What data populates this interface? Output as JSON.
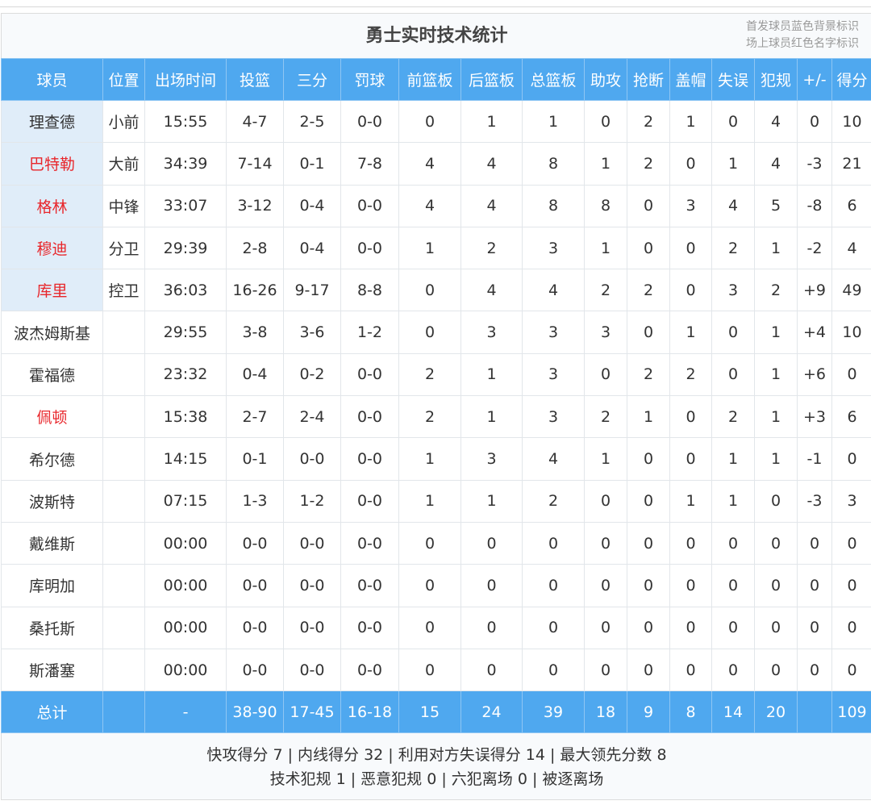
{
  "title": "勇士实时技术统计",
  "legend": [
    "首发球员蓝色背景标识",
    "场上球员红色名字标识"
  ],
  "colors": {
    "header_bg": "#4fa8ef",
    "starter_bg": "#e0edf9",
    "on_court_name": "#e8262b"
  },
  "columns": [
    "球员",
    "位置",
    "出场时间",
    "投篮",
    "三分",
    "罚球",
    "前篮板",
    "后篮板",
    "总篮板",
    "助攻",
    "抢断",
    "盖帽",
    "失误",
    "犯规",
    "+/-",
    "得分"
  ],
  "rows": [
    {
      "starter": true,
      "on_court": false,
      "cells": [
        "理查德",
        "小前",
        "15:55",
        "4-7",
        "2-5",
        "0-0",
        "0",
        "1",
        "1",
        "0",
        "2",
        "1",
        "0",
        "4",
        "0",
        "10"
      ]
    },
    {
      "starter": true,
      "on_court": true,
      "cells": [
        "巴特勒",
        "大前",
        "34:39",
        "7-14",
        "0-1",
        "7-8",
        "4",
        "4",
        "8",
        "1",
        "2",
        "0",
        "1",
        "4",
        "-3",
        "21"
      ]
    },
    {
      "starter": true,
      "on_court": true,
      "cells": [
        "格林",
        "中锋",
        "33:07",
        "3-12",
        "0-4",
        "0-0",
        "4",
        "4",
        "8",
        "8",
        "0",
        "3",
        "4",
        "5",
        "-8",
        "6"
      ]
    },
    {
      "starter": true,
      "on_court": true,
      "cells": [
        "穆迪",
        "分卫",
        "29:39",
        "2-8",
        "0-4",
        "0-0",
        "1",
        "2",
        "3",
        "1",
        "0",
        "0",
        "2",
        "1",
        "-2",
        "4"
      ]
    },
    {
      "starter": true,
      "on_court": true,
      "cells": [
        "库里",
        "控卫",
        "36:03",
        "16-26",
        "9-17",
        "8-8",
        "0",
        "4",
        "4",
        "2",
        "2",
        "0",
        "3",
        "2",
        "+9",
        "49"
      ]
    },
    {
      "starter": false,
      "on_court": false,
      "cells": [
        "波杰姆斯基",
        "",
        "29:55",
        "3-8",
        "3-6",
        "1-2",
        "0",
        "3",
        "3",
        "3",
        "0",
        "1",
        "0",
        "1",
        "+4",
        "10"
      ]
    },
    {
      "starter": false,
      "on_court": false,
      "cells": [
        "霍福德",
        "",
        "23:32",
        "0-4",
        "0-2",
        "0-0",
        "2",
        "1",
        "3",
        "0",
        "2",
        "2",
        "0",
        "1",
        "+6",
        "0"
      ]
    },
    {
      "starter": false,
      "on_court": true,
      "cells": [
        "佩顿",
        "",
        "15:38",
        "2-7",
        "2-4",
        "0-0",
        "2",
        "1",
        "3",
        "2",
        "1",
        "0",
        "2",
        "1",
        "+3",
        "6"
      ]
    },
    {
      "starter": false,
      "on_court": false,
      "cells": [
        "希尔德",
        "",
        "14:15",
        "0-1",
        "0-0",
        "0-0",
        "1",
        "3",
        "4",
        "1",
        "0",
        "0",
        "1",
        "1",
        "-1",
        "0"
      ]
    },
    {
      "starter": false,
      "on_court": false,
      "cells": [
        "波斯特",
        "",
        "07:15",
        "1-3",
        "1-2",
        "0-0",
        "1",
        "1",
        "2",
        "0",
        "0",
        "1",
        "1",
        "0",
        "-3",
        "3"
      ]
    },
    {
      "starter": false,
      "on_court": false,
      "cells": [
        "戴维斯",
        "",
        "00:00",
        "0-0",
        "0-0",
        "0-0",
        "0",
        "0",
        "0",
        "0",
        "0",
        "0",
        "0",
        "0",
        "0",
        "0"
      ]
    },
    {
      "starter": false,
      "on_court": false,
      "cells": [
        "库明加",
        "",
        "00:00",
        "0-0",
        "0-0",
        "0-0",
        "0",
        "0",
        "0",
        "0",
        "0",
        "0",
        "0",
        "0",
        "0",
        "0"
      ]
    },
    {
      "starter": false,
      "on_court": false,
      "cells": [
        "桑托斯",
        "",
        "00:00",
        "0-0",
        "0-0",
        "0-0",
        "0",
        "0",
        "0",
        "0",
        "0",
        "0",
        "0",
        "0",
        "0",
        "0"
      ]
    },
    {
      "starter": false,
      "on_court": false,
      "cells": [
        "斯潘塞",
        "",
        "00:00",
        "0-0",
        "0-0",
        "0-0",
        "0",
        "0",
        "0",
        "0",
        "0",
        "0",
        "0",
        "0",
        "0",
        "0"
      ]
    }
  ],
  "total": [
    "总计",
    "",
    "-",
    "38-90",
    "17-45",
    "16-18",
    "15",
    "24",
    "39",
    "18",
    "9",
    "8",
    "14",
    "20",
    "",
    "109"
  ],
  "footer": [
    "快攻得分 7 | 内线得分 32 | 利用对方失误得分 14 | 最大领先分数 8",
    "技术犯规 1 | 恶意犯规 0 | 六犯离场 0 | 被逐离场"
  ]
}
